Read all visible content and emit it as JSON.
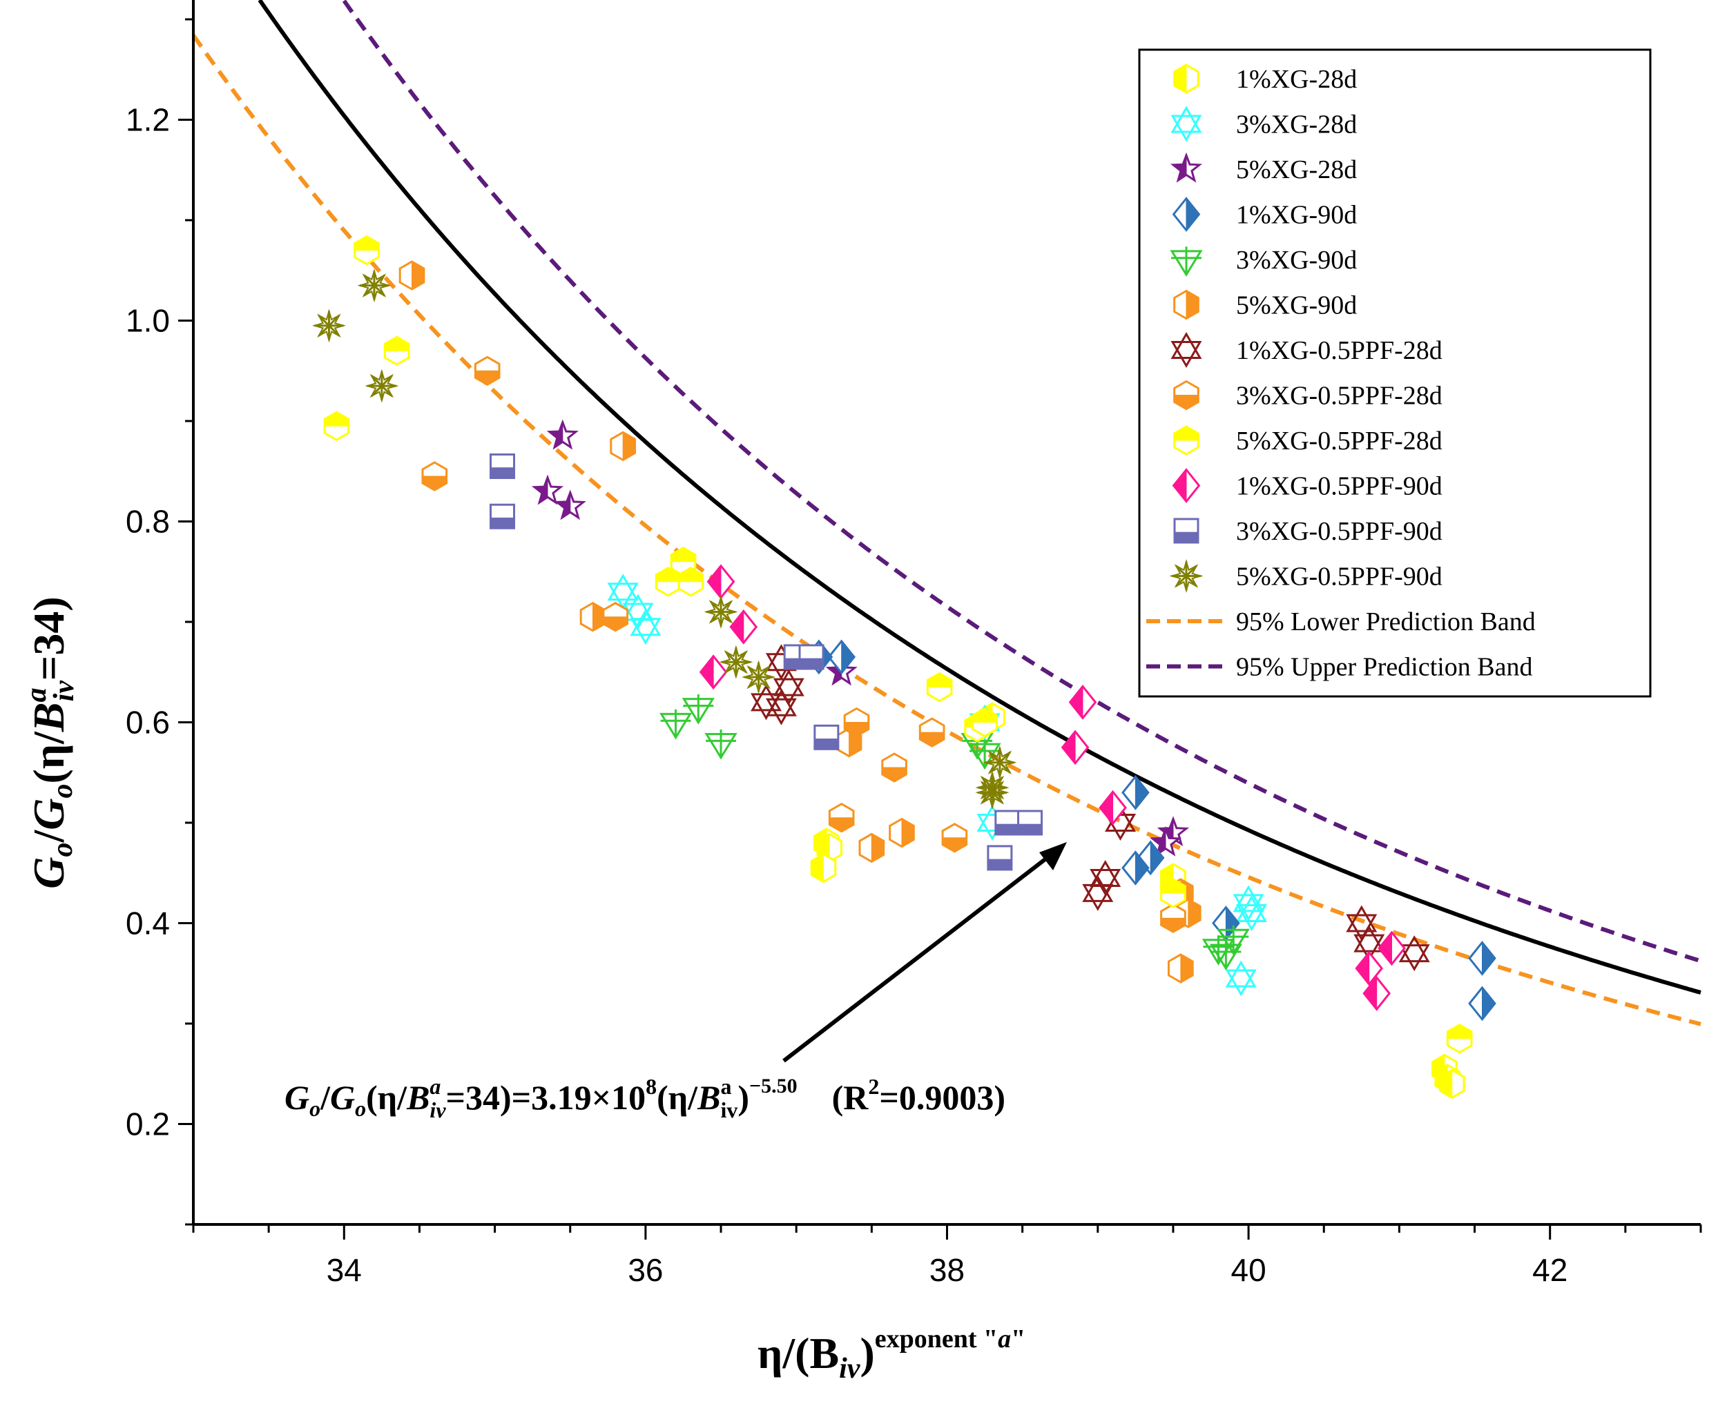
{
  "chart_data": {
    "type": "scatter",
    "xlabel": {
      "main": "η/(B",
      "sub": "iv",
      "close": ")",
      "sup_prefix": "exponent \"",
      "sup_a": "a",
      "sup_suffix": "\""
    },
    "ylabel": {
      "g1": "G",
      "s1": "o",
      "slash": "/",
      "g2": "G",
      "s2": "o",
      "p1": "(η/",
      "b": "B",
      "sup": "a",
      "sub": "iv",
      "p2": "=34)"
    },
    "xlim": [
      33,
      43
    ],
    "ylim": [
      0.1,
      1.3
    ],
    "x_ticks": [
      "34",
      "36",
      "38",
      "40",
      "42"
    ],
    "y_ticks": [
      "0.2",
      "0.4",
      "0.6",
      "0.8",
      "1.0",
      "1.2"
    ],
    "fit": {
      "coef": 319000000.0,
      "exponent": -5.5,
      "r2": 0.9003,
      "color": "#000000"
    },
    "bands": [
      {
        "name": "95% Lower Prediction Band",
        "color": "#f7931e",
        "scale": 0.905
      },
      {
        "name": "95% Upper Prediction Band",
        "color": "#5b1b7a",
        "scale": 1.095
      }
    ],
    "equation": {
      "g1": "G",
      "s1": "o",
      "slash": "/",
      "g2": "G",
      "s2": "o",
      "p1": "(η/",
      "b1": "B",
      "sup1": "a",
      "sub1": "iv",
      "p2": "=34)=3.19×10",
      "exp10": "8",
      "p3": "(η/",
      "b2": "B",
      "sup2": "a",
      "sub2": "iv",
      "p4": ")",
      "exp2": "−5.50",
      "r2open": "(R",
      "r2sup": "2",
      "r2close": "=0.9003)"
    },
    "series": [
      {
        "name": "1%XG-28d",
        "marker": "hex-left",
        "color": "#ffff00",
        "points": [
          [
            41.3,
            0.255
          ],
          [
            41.32,
            0.245
          ],
          [
            41.35,
            0.24
          ],
          [
            37.2,
            0.48
          ],
          [
            37.22,
            0.475
          ],
          [
            37.18,
            0.455
          ],
          [
            38.3,
            0.605
          ],
          [
            39.5,
            0.445
          ]
        ]
      },
      {
        "name": "3%XG-28d",
        "marker": "star6",
        "color": "#33ffff",
        "points": [
          [
            35.85,
            0.73
          ],
          [
            35.95,
            0.71
          ],
          [
            36.0,
            0.695
          ],
          [
            38.25,
            0.6
          ],
          [
            38.3,
            0.5
          ],
          [
            40.0,
            0.42
          ],
          [
            40.02,
            0.41
          ],
          [
            39.95,
            0.345
          ]
        ]
      },
      {
        "name": "5%XG-28d",
        "marker": "star5",
        "color": "#7a1a8a",
        "points": [
          [
            35.45,
            0.885
          ],
          [
            35.35,
            0.83
          ],
          [
            35.5,
            0.815
          ],
          [
            37.3,
            0.65
          ],
          [
            39.5,
            0.49
          ],
          [
            39.45,
            0.48
          ]
        ]
      },
      {
        "name": "1%XG-90d",
        "marker": "diamond-right",
        "color": "#2e72b8",
        "points": [
          [
            37.3,
            0.665
          ],
          [
            37.15,
            0.665
          ],
          [
            39.25,
            0.53
          ],
          [
            39.35,
            0.465
          ],
          [
            39.25,
            0.455
          ],
          [
            39.85,
            0.4
          ],
          [
            41.55,
            0.365
          ],
          [
            41.55,
            0.32
          ]
        ]
      },
      {
        "name": "3%XG-90d",
        "marker": "tri-down-plus",
        "color": "#33cc33",
        "points": [
          [
            36.2,
            0.6
          ],
          [
            36.35,
            0.615
          ],
          [
            36.5,
            0.58
          ],
          [
            38.2,
            0.58
          ],
          [
            38.25,
            0.57
          ],
          [
            39.8,
            0.375
          ],
          [
            39.85,
            0.37
          ],
          [
            39.9,
            0.385
          ]
        ]
      },
      {
        "name": "5%XG-90d",
        "marker": "hex-right",
        "color": "#f7931e",
        "points": [
          [
            34.45,
            1.045
          ],
          [
            35.85,
            0.875
          ],
          [
            35.65,
            0.705
          ],
          [
            37.35,
            0.58
          ],
          [
            37.7,
            0.49
          ],
          [
            37.5,
            0.475
          ],
          [
            39.55,
            0.43
          ],
          [
            39.6,
            0.41
          ],
          [
            39.55,
            0.355
          ]
        ]
      },
      {
        "name": "1%XG-0.5PPF-28d",
        "marker": "star6",
        "color": "#8b1a1a",
        "points": [
          [
            36.8,
            0.62
          ],
          [
            36.9,
            0.66
          ],
          [
            36.95,
            0.635
          ],
          [
            36.9,
            0.615
          ],
          [
            39.15,
            0.5
          ],
          [
            39.05,
            0.445
          ],
          [
            39.0,
            0.43
          ],
          [
            40.75,
            0.4
          ],
          [
            40.8,
            0.38
          ],
          [
            41.1,
            0.37
          ]
        ]
      },
      {
        "name": "3%XG-0.5PPF-28d",
        "marker": "hex-top",
        "color": "#f7931e",
        "points": [
          [
            34.6,
            0.845
          ],
          [
            34.95,
            0.95
          ],
          [
            35.8,
            0.705
          ],
          [
            37.3,
            0.505
          ],
          [
            37.4,
            0.6
          ],
          [
            37.65,
            0.555
          ],
          [
            37.9,
            0.59
          ],
          [
            38.05,
            0.485
          ],
          [
            39.5,
            0.405
          ]
        ]
      },
      {
        "name": "5%XG-0.5PPF-28d",
        "marker": "hex-bottom",
        "color": "#ffff00",
        "points": [
          [
            34.15,
            1.07
          ],
          [
            34.35,
            0.97
          ],
          [
            33.95,
            0.895
          ],
          [
            36.15,
            0.74
          ],
          [
            36.25,
            0.76
          ],
          [
            36.3,
            0.74
          ],
          [
            37.95,
            0.635
          ],
          [
            38.2,
            0.595
          ],
          [
            38.25,
            0.6
          ],
          [
            41.4,
            0.285
          ],
          [
            39.5,
            0.43
          ]
        ]
      },
      {
        "name": "1%XG-0.5PPF-90d",
        "marker": "diamond-left",
        "color": "#ff1493",
        "points": [
          [
            36.5,
            0.74
          ],
          [
            36.65,
            0.695
          ],
          [
            36.45,
            0.65
          ],
          [
            38.9,
            0.62
          ],
          [
            38.85,
            0.575
          ],
          [
            39.1,
            0.515
          ],
          [
            40.95,
            0.375
          ],
          [
            40.8,
            0.355
          ],
          [
            40.85,
            0.33
          ]
        ]
      },
      {
        "name": "3%XG-0.5PPF-90d",
        "marker": "square-bottom",
        "color": "#6b6bb5",
        "points": [
          [
            35.05,
            0.855
          ],
          [
            35.05,
            0.805
          ],
          [
            37.0,
            0.665
          ],
          [
            37.1,
            0.665
          ],
          [
            37.2,
            0.585
          ],
          [
            38.4,
            0.5
          ],
          [
            38.55,
            0.5
          ],
          [
            38.35,
            0.465
          ]
        ]
      },
      {
        "name": "5%XG-0.5PPF-90d",
        "marker": "star8",
        "color": "#808000",
        "points": [
          [
            33.9,
            0.995
          ],
          [
            34.2,
            1.035
          ],
          [
            34.25,
            0.935
          ],
          [
            36.5,
            0.71
          ],
          [
            36.6,
            0.66
          ],
          [
            36.75,
            0.645
          ],
          [
            38.3,
            0.535
          ],
          [
            38.35,
            0.56
          ],
          [
            38.3,
            0.53
          ]
        ]
      }
    ]
  }
}
